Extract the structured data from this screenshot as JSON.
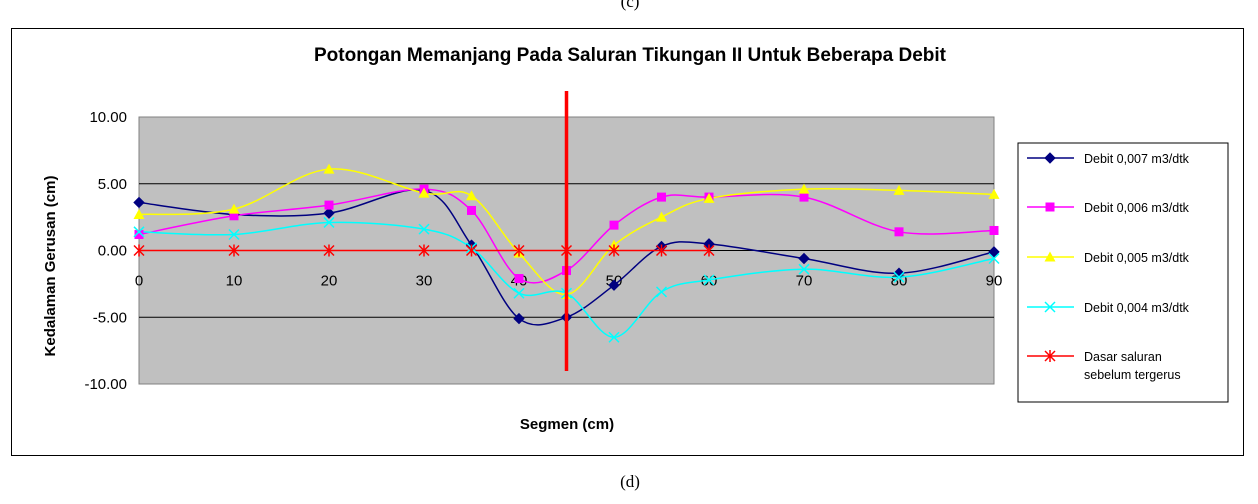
{
  "figure": {
    "top_label": "(c)",
    "bottom_label": "(d)"
  },
  "chart_data": {
    "type": "line",
    "title": "Potongan Memanjang Pada Saluran Tikungan II Untuk Beberapa Debit",
    "xlabel": "Segmen (cm)",
    "ylabel": "Kedalaman Gerusan (cm)",
    "x_ticks": [
      "0",
      "10",
      "20",
      "30",
      "40",
      "50",
      "60",
      "70",
      "80",
      "90"
    ],
    "y_ticks": [
      "10.00",
      "5.00",
      "0.00",
      "-5.00",
      "-10.00"
    ],
    "xlim": [
      0,
      90
    ],
    "ylim": [
      -10,
      10
    ],
    "grid": "horizontal",
    "plot_background": "#c0c0c0",
    "legend_position": "right",
    "marker_line_x": 45,
    "marker_line_color": "#ff0000",
    "series": [
      {
        "name": "Debit 0,007 m3/dtk",
        "color": "#000080",
        "marker": "diamond",
        "points": [
          [
            0,
            3.6
          ],
          [
            10,
            2.7
          ],
          [
            20,
            2.8
          ],
          [
            30,
            4.5
          ],
          [
            35,
            0.4
          ],
          [
            40,
            -5.1
          ],
          [
            45,
            -5.0
          ],
          [
            50,
            -2.6
          ],
          [
            55,
            0.3
          ],
          [
            60,
            0.5
          ],
          [
            70,
            -0.6
          ],
          [
            80,
            -1.7
          ],
          [
            90,
            -0.1
          ]
        ]
      },
      {
        "name": "Debit 0,006 m3/dtk",
        "color": "#ff00ff",
        "marker": "square",
        "points": [
          [
            0,
            1.2
          ],
          [
            10,
            2.6
          ],
          [
            20,
            3.4
          ],
          [
            30,
            4.6
          ],
          [
            35,
            3.0
          ],
          [
            40,
            -2.1
          ],
          [
            45,
            -1.5
          ],
          [
            50,
            1.9
          ],
          [
            55,
            4.0
          ],
          [
            60,
            4.0
          ],
          [
            70,
            4.0
          ],
          [
            80,
            1.4
          ],
          [
            90,
            1.5
          ]
        ]
      },
      {
        "name": "Debit 0,005 m3/dtk",
        "color": "#ffff00",
        "marker": "triangle",
        "points": [
          [
            0,
            2.7
          ],
          [
            10,
            3.1
          ],
          [
            20,
            6.1
          ],
          [
            30,
            4.3
          ],
          [
            35,
            4.1
          ],
          [
            40,
            -0.2
          ],
          [
            45,
            -3.3
          ],
          [
            50,
            0.4
          ],
          [
            55,
            2.5
          ],
          [
            60,
            3.9
          ],
          [
            70,
            4.6
          ],
          [
            80,
            4.5
          ],
          [
            90,
            4.2
          ]
        ]
      },
      {
        "name": "Debit 0,004 m3/dtk",
        "color": "#00ffff",
        "marker": "x",
        "points": [
          [
            0,
            1.4
          ],
          [
            10,
            1.2
          ],
          [
            20,
            2.1
          ],
          [
            30,
            1.6
          ],
          [
            35,
            0.2
          ],
          [
            40,
            -3.2
          ],
          [
            45,
            -3.2
          ],
          [
            50,
            -6.5
          ],
          [
            55,
            -3.1
          ],
          [
            60,
            -2.2
          ],
          [
            70,
            -1.4
          ],
          [
            80,
            -2.0
          ],
          [
            90,
            -0.6
          ]
        ]
      },
      {
        "name": "Dasar saluran sebelum tergerus",
        "legend_lines": [
          "Dasar saluran",
          "sebelum tergerus"
        ],
        "color": "#ff0000",
        "marker": "asterisk",
        "points": [
          [
            0,
            0
          ],
          [
            10,
            0
          ],
          [
            20,
            0
          ],
          [
            30,
            0
          ],
          [
            35,
            0
          ],
          [
            40,
            0
          ],
          [
            45,
            0
          ],
          [
            50,
            0
          ],
          [
            55,
            0
          ],
          [
            60,
            0
          ]
        ]
      }
    ]
  }
}
